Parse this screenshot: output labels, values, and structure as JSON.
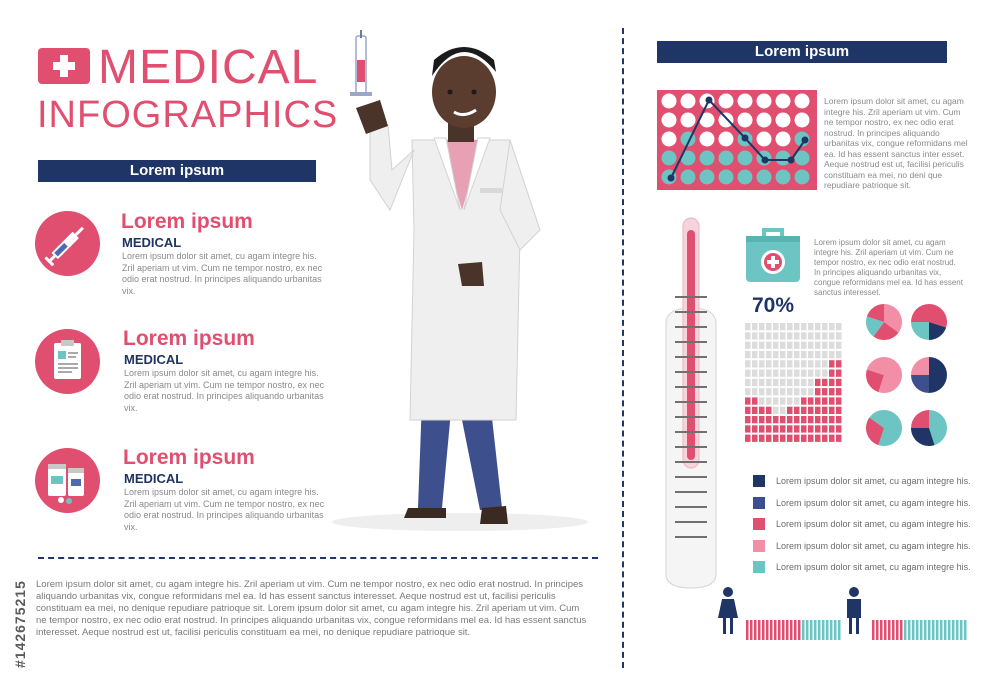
{
  "header": {
    "title_line1": "MEDICAL",
    "title_line2": "INFOGRAPHICS",
    "left_band": "Lorem ipsum",
    "right_band": "Lorem ipsum"
  },
  "items": [
    {
      "title": "Lorem ipsum",
      "subtitle": "MEDICAL",
      "text": "Lorem ipsum dolor sit amet, cu agam integre his. Zril aperiam ut vim. Cum ne tempor nostro, ex nec odio erat nostrud. In principes aliquando urbanitas vix.",
      "icon": "syringe-icon"
    },
    {
      "title": "Lorem ipsum",
      "subtitle": "MEDICAL",
      "text": "Lorem ipsum dolor sit amet, cu agam integre his. Zril aperiam ut vim. Cum ne tempor nostro, ex nec odio erat nostrud. In principes aliquando urbanitas vix.",
      "icon": "clipboard-icon"
    },
    {
      "title": "Lorem ipsum",
      "subtitle": "MEDICAL",
      "text": "Lorem ipsum dolor sit amet, cu agam integre his. Zril aperiam ut vim. Cum ne tempor nostro, ex nec odio erat nostrud. In principes aliquando urbanitas vix.",
      "icon": "medicine-bottles-icon"
    }
  ],
  "bottom_text": "Lorem ipsum dolor sit amet, cu agam integre his. Zril aperiam ut vim. Cum ne tempor nostro, ex nec odio erat nostrud. In principes aliquando urbanitas vix, congue reformidans mel ea. Id has essent sanctus interesset. Aeque nostrud est ut, facilisi periculis constituam ea mei, no denique repudiare patrioque sit. Lorem ipsum dolor sit amet, cu agam integre his. Zril aperiam ut vim. Cum ne tempor nostro, ex nec odio erat nostrud. In principes aliquando urbanitas vix, congue reformidans mel ea. Id has essent sanctus interesset. Aeque nostrud est ut, facilisi periculis constituam ea mei, no denique repudiare patrioque sit.",
  "right_text_1": "Lorem ipsum dolor sit amet, cu agam integre his. Zril aperiam ut vim. Cum ne tempor nostro, ex nec odio erat nostrud. In principes aliquando urbanitas vix, congue reformidans mel ea. Id has essent sanctus inter esset. Aeque nostrud est ut, facilisi periculis constituam ea mei, no deni que repudiare patrioque sit.",
  "right_text_2": "Lorem ipsum dolor sit amet, cu agam integre his. Zril aperiam ut vim. Cum ne tempor nostro, ex nec odio erat nostrud. In principes aliquando urbanitas vix, congue reformidans mel ea. Id has essent sanctus interesset.",
  "percent_label": "70%",
  "legend": [
    {
      "text": "Lorem ipsum dolor sit amet, cu agam integre his.",
      "color": "#1f3566"
    },
    {
      "text": "Lorem ipsum dolor sit amet, cu agam integre his.",
      "color": "#3e4f8e"
    },
    {
      "text": "Lorem ipsum dolor sit amet, cu agam integre his.",
      "color": "#e04f6f"
    },
    {
      "text": "Lorem ipsum dolor sit amet, cu agam integre his.",
      "color": "#f28ea5"
    },
    {
      "text": "Lorem ipsum dolor sit amet, cu agam integre his.",
      "color": "#6cc5c3"
    }
  ],
  "stock_id": "#142675215",
  "colors": {
    "accent": "#e04f6f",
    "navy": "#1f3566",
    "teal": "#6cc5c3",
    "light_pink": "#f28ea5",
    "grey": "#d9d9d9"
  }
}
